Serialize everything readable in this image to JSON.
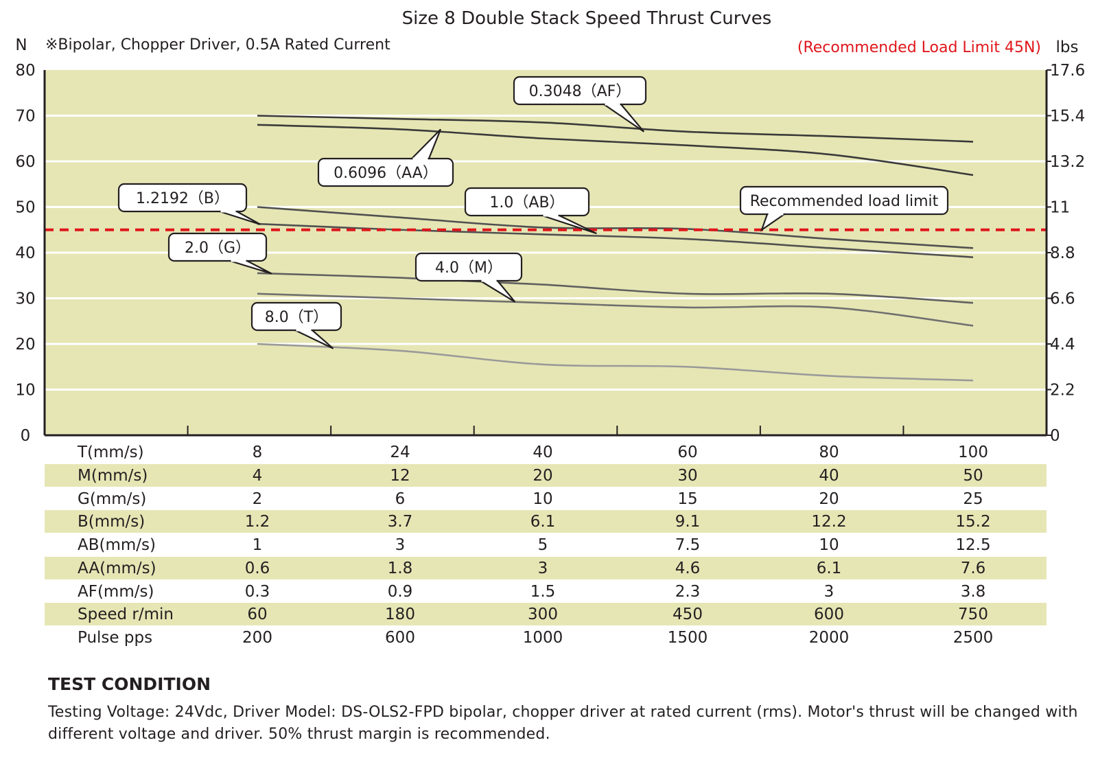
{
  "chart_data": {
    "type": "line",
    "title": "Size 8 Double Stack Speed Thrust Curves",
    "subtitle": "※Bipolar, Chopper Driver, 0.5A Rated Current",
    "load_limit_note": "(Recommended Load Limit 45N)",
    "y_left_label": "N",
    "y_right_label": "lbs",
    "ylim": [
      0,
      80
    ],
    "y_ticks": [
      "0",
      "10",
      "20",
      "30",
      "40",
      "50",
      "60",
      "70",
      "80"
    ],
    "y_right_ticks": [
      "0",
      "2.2",
      "4.4",
      "6.6",
      "8.8",
      "11",
      "13.2",
      "15.4",
      "17.6"
    ],
    "grid": true,
    "x_categories": [
      "8",
      "24",
      "40",
      "60",
      "80",
      "100"
    ],
    "recommended_load_limit": 45,
    "recommended_load_limit_label": "Recommended load limit",
    "series": [
      {
        "name": "0.3048（AF）",
        "x": [
          0,
          1,
          2,
          3,
          4,
          5
        ],
        "values": [
          70,
          69.3,
          68.5,
          66.5,
          65.5,
          64.3
        ]
      },
      {
        "name": "0.6096（AA）",
        "x": [
          0,
          1,
          2,
          3,
          4,
          5
        ],
        "values": [
          68,
          67,
          65,
          63.5,
          61.5,
          57
        ]
      },
      {
        "name": "1.2192（B）",
        "x": [
          0,
          1,
          2,
          3,
          4,
          5
        ],
        "values": [
          50,
          47.7,
          45.5,
          45.2,
          43,
          41
        ]
      },
      {
        "name": "1.0（AB）",
        "x": [
          0,
          1,
          2,
          3,
          4,
          5
        ],
        "values": [
          46.3,
          45,
          44,
          43,
          41,
          39
        ]
      },
      {
        "name": "2.0（G）",
        "x": [
          0,
          1,
          2,
          3,
          4,
          5
        ],
        "values": [
          35.5,
          34.5,
          33,
          31,
          31,
          29
        ]
      },
      {
        "name": "4.0（M）",
        "x": [
          0,
          1,
          2,
          3,
          4,
          5
        ],
        "values": [
          31,
          30,
          29,
          28,
          28,
          24
        ]
      },
      {
        "name": "8.0（T）",
        "x": [
          0,
          1,
          2,
          3,
          4,
          5
        ],
        "values": [
          20,
          18.5,
          15.5,
          15,
          13,
          12
        ]
      }
    ]
  },
  "colors": {
    "plot_background": "#e6e6b5",
    "limit_line": "#e0161b",
    "axis": "#231f20",
    "series": [
      "#3a3a3a",
      "#3a3a3a",
      "#505050",
      "#505050",
      "#606060",
      "#707070",
      "#9a9a9a"
    ]
  },
  "table": {
    "rows": [
      {
        "label": "T(mm/s)",
        "values": [
          "8",
          "24",
          "40",
          "60",
          "80",
          "100"
        ]
      },
      {
        "label": "M(mm/s)",
        "values": [
          "4",
          "12",
          "20",
          "30",
          "40",
          "50"
        ]
      },
      {
        "label": "G(mm/s)",
        "values": [
          "2",
          "6",
          "10",
          "15",
          "20",
          "25"
        ]
      },
      {
        "label": "B(mm/s)",
        "values": [
          "1.2",
          "3.7",
          "6.1",
          "9.1",
          "12.2",
          "15.2"
        ]
      },
      {
        "label": "AB(mm/s)",
        "values": [
          "1",
          "3",
          "5",
          "7.5",
          "10",
          "12.5"
        ]
      },
      {
        "label": "AA(mm/s)",
        "values": [
          "0.6",
          "1.8",
          "3",
          "4.6",
          "6.1",
          "7.6"
        ]
      },
      {
        "label": "AF(mm/s)",
        "values": [
          "0.3",
          "0.9",
          "1.5",
          "2.3",
          "3",
          "3.8"
        ]
      },
      {
        "label": "Speed r/min",
        "values": [
          "60",
          "180",
          "300",
          "450",
          "600",
          "750"
        ]
      },
      {
        "label": "Pulse pps",
        "values": [
          "200",
          "600",
          "1000",
          "1500",
          "2000",
          "2500"
        ]
      }
    ]
  },
  "test_condition": {
    "title": "TEST CONDITION",
    "text": "Testing Voltage: 24Vdc, Driver Model: DS-OLS2-FPD bipolar, chopper driver at rated current (rms). Motor's thrust will be changed with different voltage and driver. 50% thrust margin is recommended."
  }
}
